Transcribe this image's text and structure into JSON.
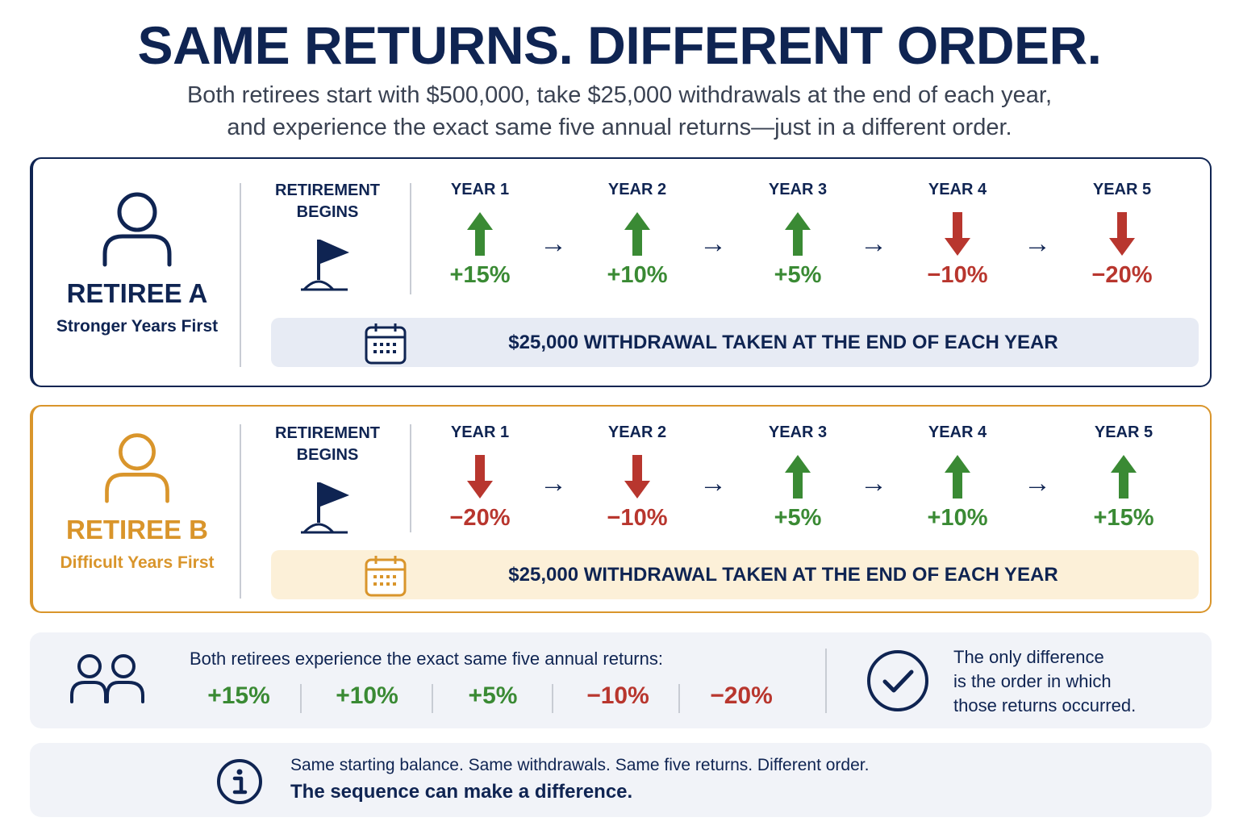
{
  "title": "SAME RETURNS. DIFFERENT ORDER.",
  "subtitle_line1": "Both retirees start with $500,000, take $25,000 withdrawals at the end of each year,",
  "subtitle_line2": "and experience the exact same five annual returns—just in a different order.",
  "colors": {
    "navy": "#0f2452",
    "gold": "#d9952b",
    "green": "#3a8a34",
    "red": "#b8362e"
  },
  "retiree_a": {
    "name": "RETIREE A",
    "subtitle": "Stronger Years First",
    "begins_line1": "RETIREMENT",
    "begins_line2": "BEGINS",
    "years": [
      {
        "label": "YEAR 1",
        "return": "+15%",
        "direction": "up"
      },
      {
        "label": "YEAR 2",
        "return": "+10%",
        "direction": "up"
      },
      {
        "label": "YEAR 3",
        "return": "+5%",
        "direction": "up"
      },
      {
        "label": "YEAR 4",
        "return": "−10%",
        "direction": "down"
      },
      {
        "label": "YEAR 5",
        "return": "−20%",
        "direction": "down"
      }
    ],
    "withdrawal": "$25,000 WITHDRAWAL TAKEN AT THE END OF EACH YEAR"
  },
  "retiree_b": {
    "name": "RETIREE B",
    "subtitle": "Difficult Years First",
    "begins_line1": "RETIREMENT",
    "begins_line2": "BEGINS",
    "years": [
      {
        "label": "YEAR 1",
        "return": "−20%",
        "direction": "down"
      },
      {
        "label": "YEAR 2",
        "return": "−10%",
        "direction": "down"
      },
      {
        "label": "YEAR 3",
        "return": "+5%",
        "direction": "up"
      },
      {
        "label": "YEAR 4",
        "return": "+10%",
        "direction": "up"
      },
      {
        "label": "YEAR 5",
        "return": "+15%",
        "direction": "up"
      }
    ],
    "withdrawal": "$25,000 WITHDRAWAL TAKEN AT THE END OF EACH YEAR"
  },
  "summary": {
    "text": "Both retirees experience the exact same five annual returns:",
    "returns": [
      "+15%",
      "+10%",
      "+5%",
      "−10%",
      "−20%"
    ],
    "difference_line1": "The only difference",
    "difference_line2": "is the order in which",
    "difference_line3": "those returns occurred."
  },
  "info": {
    "line1": "Same starting balance. Same withdrawals. Same five returns. Different order.",
    "line2": "The sequence can make a difference."
  },
  "icons": [
    "person-icon",
    "flag-icon",
    "arrow-up-icon",
    "arrow-down-icon",
    "arrow-right-icon",
    "calendar-icon",
    "people-icon",
    "check-circle-icon",
    "info-icon"
  ]
}
